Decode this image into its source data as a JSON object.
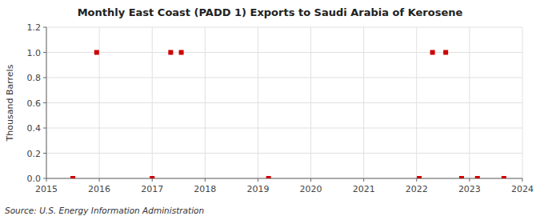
{
  "chart_data": {
    "type": "scatter",
    "title": "Monthly East Coast (PADD 1) Exports to Saudi Arabia of Kerosene",
    "y_label": "Thousand Barrels",
    "source": "Source: U.S. Energy Information Administration",
    "x": [
      2015.5,
      2015.95,
      2017.0,
      2017.35,
      2017.55,
      2019.2,
      2022.05,
      2022.3,
      2022.55,
      2022.85,
      2023.15,
      2023.65
    ],
    "values": [
      0.0,
      1.0,
      0.0,
      1.0,
      1.0,
      0.0,
      0.0,
      1.0,
      1.0,
      0.0,
      0.0,
      0.0
    ],
    "color": "#cc0000",
    "marker": "square",
    "xlim": [
      2015,
      2024
    ],
    "ylim": [
      0,
      1.2
    ],
    "xticks": [
      2015,
      2016,
      2017,
      2018,
      2019,
      2020,
      2021,
      2022,
      2023,
      2024
    ],
    "yticks": [
      {
        "value": 0,
        "label": "0.0"
      },
      0.2,
      0.4,
      0.6,
      0.8,
      {
        "value": 1,
        "label": "1.0"
      },
      1.2
    ],
    "grid": true
  }
}
